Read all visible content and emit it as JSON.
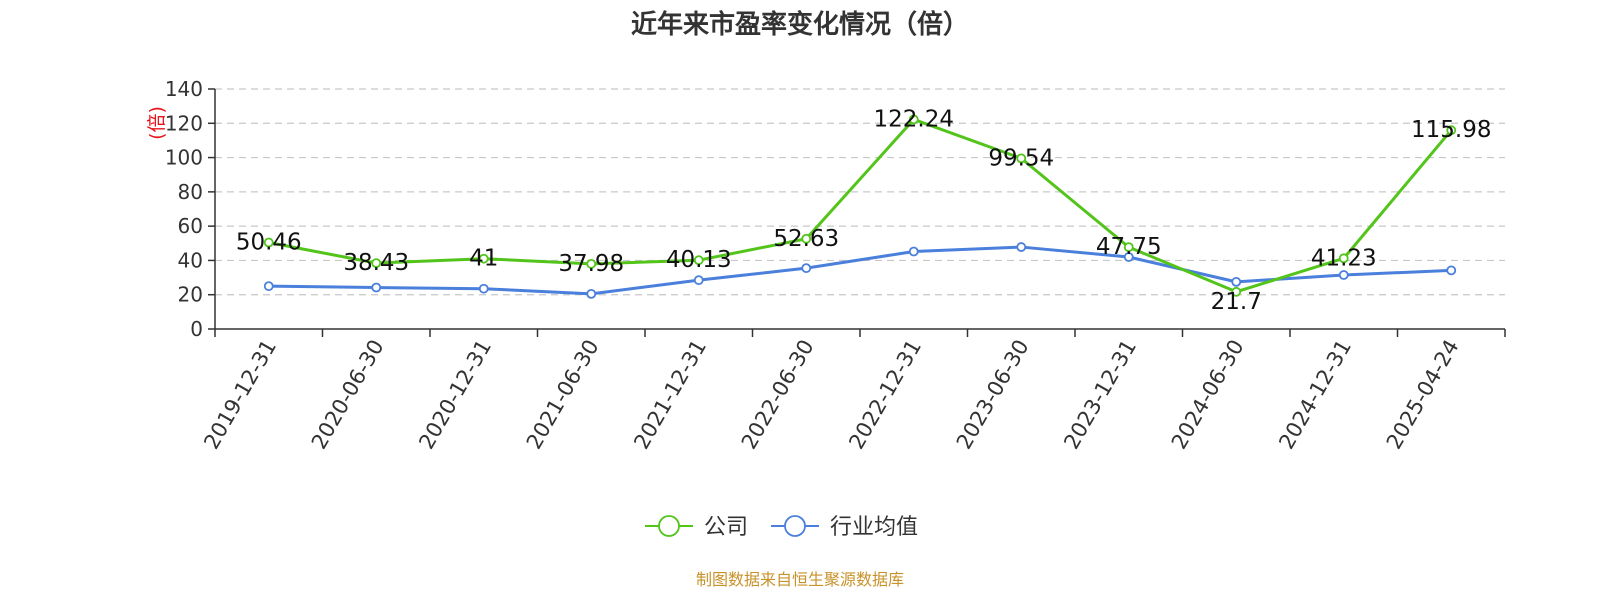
{
  "chart_data": {
    "type": "line",
    "title": "近年来市盈率变化情况（倍）",
    "ylabel": "(倍)",
    "xlabel": "",
    "ylim": [
      0,
      140
    ],
    "yticks": [
      0,
      20,
      40,
      60,
      80,
      100,
      120,
      140
    ],
    "grid": true,
    "legend_position": "bottom",
    "categories": [
      "2019-12-31",
      "2020-06-30",
      "2020-12-31",
      "2021-06-30",
      "2021-12-31",
      "2022-06-30",
      "2022-12-31",
      "2023-06-30",
      "2023-12-31",
      "2024-06-30",
      "2024-12-31",
      "2025-04-24"
    ],
    "series": [
      {
        "name": "公司",
        "color": "#52c41a",
        "values": [
          50.46,
          38.43,
          41,
          37.98,
          40.13,
          52.63,
          122.24,
          99.54,
          47.75,
          21.7,
          41.23,
          115.98
        ],
        "labels": [
          "50.46",
          "38.43",
          "41",
          "37.98",
          "40.13",
          "52.63",
          "122.24",
          "99.54",
          "47.75",
          "21.7",
          "41.23",
          "115.98"
        ]
      },
      {
        "name": "行业均值",
        "color": "#4a7fdc",
        "values": [
          25,
          24.2,
          23.5,
          20.5,
          28.5,
          35.5,
          45.2,
          47.8,
          42,
          27.5,
          31.5,
          34.2
        ]
      }
    ]
  },
  "source": "制图数据来自恒生聚源数据库"
}
